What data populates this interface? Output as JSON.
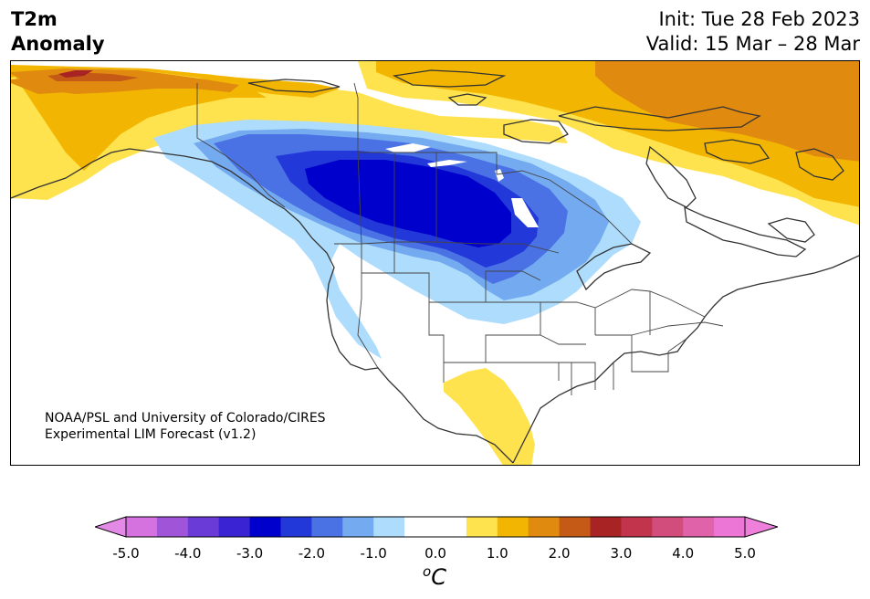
{
  "header": {
    "title_line1": "T2m",
    "title_line2": "Anomaly",
    "init": "Init: Tue 28 Feb 2023",
    "valid": "Valid: 15 Mar – 28 Mar"
  },
  "credit": {
    "line1": "NOAA/PSL and University of Colorado/CIRES",
    "line2": "Experimental LIM Forecast (v1.2)"
  },
  "map": {
    "variable": "2 m temperature anomaly",
    "units": "°C",
    "region": "North America",
    "layers": [
      "coastlines",
      "country-borders",
      "state-province-borders",
      "filled-anomaly-contours"
    ]
  },
  "colorbar": {
    "unit_base": "o",
    "unit_letter": "C",
    "tick_labels": [
      "-5.0",
      "-4.0",
      "-3.0",
      "-2.0",
      "-1.0",
      "0.0",
      "1.0",
      "2.0",
      "3.0",
      "4.0",
      "5.0"
    ],
    "levels": [
      -5.0,
      -4.5,
      -4.0,
      -3.5,
      -3.0,
      -2.5,
      -2.0,
      -1.5,
      -1.0,
      -0.5,
      0.5,
      1.0,
      1.5,
      2.0,
      2.5,
      3.0,
      3.5,
      4.0,
      4.5,
      5.0
    ],
    "colors": [
      "#d672e0",
      "#a055d8",
      "#6a3bd6",
      "#3a23d2",
      "#0000cc",
      "#2338d8",
      "#4a72e4",
      "#74aaf0",
      "#aedcfc",
      "#ffffff",
      "#ffe34e",
      "#f2b602",
      "#e08a10",
      "#c45a16",
      "#a82424",
      "#c2344c",
      "#d24c7c",
      "#e062a8",
      "#ec76d6"
    ],
    "under_color": "#e28ae6",
    "over_color": "#ee80dc"
  }
}
